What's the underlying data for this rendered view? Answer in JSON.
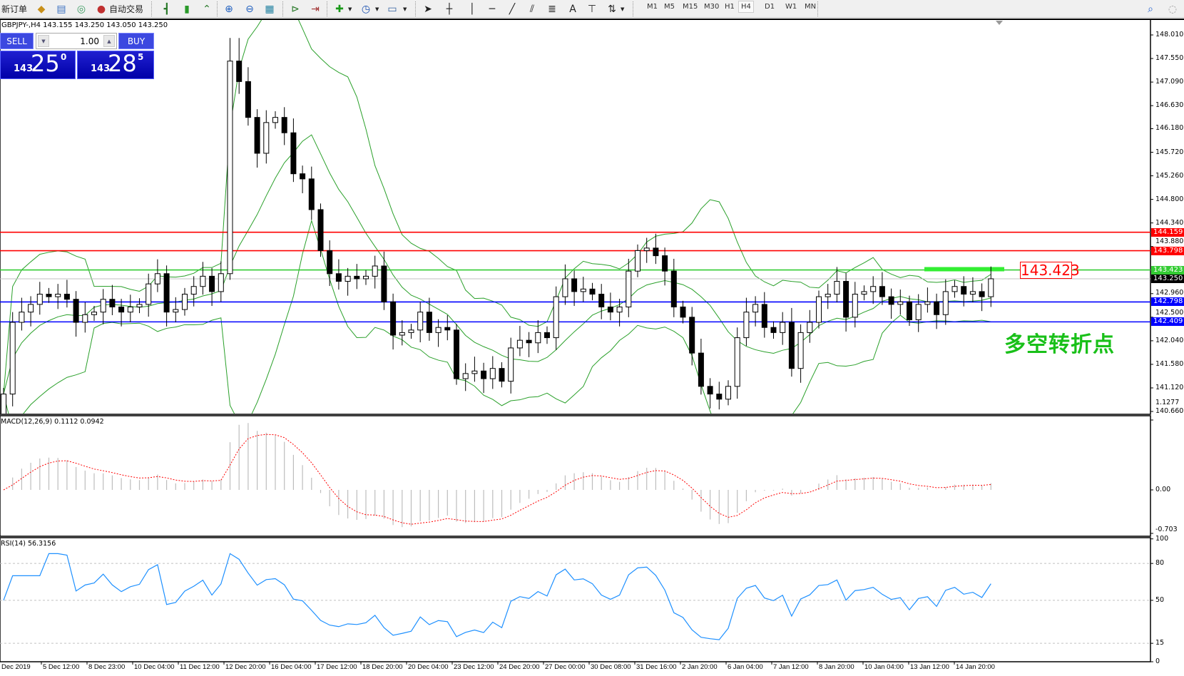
{
  "toolbar": {
    "new_order": "新订单",
    "auto_trading": "自动交易",
    "timeframes": [
      "M1",
      "M5",
      "M15",
      "M30",
      "H1",
      "H4",
      "D1",
      "W1",
      "MN"
    ],
    "active_timeframe": "H4"
  },
  "chart": {
    "title": "GBPJPY-,H4  143.155 143.250 143.050 143.250",
    "price_axis": [
      "148.010",
      "147.550",
      "147.090",
      "146.630",
      "146.180",
      "145.720",
      "145.260",
      "144.800",
      "144.340",
      "143.880",
      "142.960",
      "142.500",
      "142.040",
      "141.580",
      "141.120",
      "140.660"
    ],
    "levels": [
      {
        "value": "144.159",
        "price": 144.159,
        "color": "#ff0000"
      },
      {
        "value": "143.798",
        "price": 143.798,
        "color": "#ff0000"
      },
      {
        "value": "143.423",
        "price": 143.423,
        "color": "#33cc33"
      },
      {
        "value": "143.250",
        "price": 143.25,
        "color": "#000000"
      },
      {
        "value": "142.798",
        "price": 142.798,
        "color": "#0000ff"
      },
      {
        "value": "142.409",
        "price": 142.409,
        "color": "#0000ff"
      }
    ],
    "annotation_box": "143.423",
    "annotation_text": "多空转折点",
    "time_axis": [
      "Dec 2019",
      "5 Dec 12:00",
      "8 Dec 23:00",
      "10 Dec 04:00",
      "11 Dec 12:00",
      "12 Dec 20:00",
      "16 Dec 04:00",
      "17 Dec 12:00",
      "18 Dec 20:00",
      "20 Dec 04:00",
      "23 Dec 12:00",
      "24 Dec 20:00",
      "27 Dec 00:00",
      "30 Dec 08:00",
      "31 Dec 16:00",
      "2 Jan 20:00",
      "6 Jan 04:00",
      "7 Jan 12:00",
      "8 Jan 20:00",
      "10 Jan 04:00",
      "13 Jan 12:00",
      "14 Jan 20:00"
    ]
  },
  "trade_panel": {
    "sell_label": "SELL",
    "buy_label": "BUY",
    "lot": "1.00",
    "sell_price": {
      "small": "143",
      "big": "25",
      "sup": "0"
    },
    "buy_price": {
      "small": "143",
      "big": "28",
      "sup": "5"
    }
  },
  "macd": {
    "label": "MACD(12,26,9) 0.1112 0.0942",
    "axis": [
      "1.1277",
      "0.00",
      "-0.703"
    ]
  },
  "rsi": {
    "label": "RSI(14) 56.3156",
    "axis": [
      "100",
      "80",
      "50",
      "15",
      "0"
    ]
  },
  "chart_data": {
    "type": "candlestick",
    "symbol": "GBPJPY-",
    "timeframe": "H4",
    "close": [
      141.0,
      142.4,
      142.6,
      142.75,
      142.95,
      142.9,
      142.95,
      142.85,
      142.4,
      142.55,
      142.6,
      142.85,
      142.7,
      142.6,
      142.7,
      142.75,
      143.15,
      143.35,
      142.6,
      142.65,
      142.95,
      143.1,
      143.3,
      143.0,
      143.35,
      147.5,
      147.1,
      146.4,
      145.7,
      146.3,
      146.4,
      146.1,
      145.3,
      145.2,
      144.6,
      143.8,
      143.35,
      143.2,
      143.3,
      143.25,
      143.3,
      143.5,
      142.8,
      142.15,
      142.2,
      142.25,
      142.6,
      142.2,
      142.3,
      142.25,
      141.3,
      141.4,
      141.45,
      141.3,
      141.5,
      141.25,
      141.9,
      142.05,
      142.0,
      142.2,
      142.1,
      142.9,
      143.25,
      143.0,
      143.05,
      142.95,
      142.7,
      142.6,
      142.7,
      143.4,
      143.8,
      143.85,
      143.7,
      143.4,
      142.7,
      142.5,
      141.8,
      141.15,
      141.0,
      140.9,
      141.15,
      142.1,
      142.6,
      142.75,
      142.3,
      142.2,
      142.4,
      141.5,
      142.2,
      142.4,
      142.9,
      142.95,
      143.2,
      142.5,
      142.95,
      143.0,
      143.1,
      142.9,
      142.75,
      142.8,
      142.45,
      142.75,
      142.8,
      142.55,
      143.0,
      143.1,
      142.95,
      143.0,
      142.9,
      143.25
    ],
    "ylim": [
      140.66,
      148.01
    ]
  }
}
